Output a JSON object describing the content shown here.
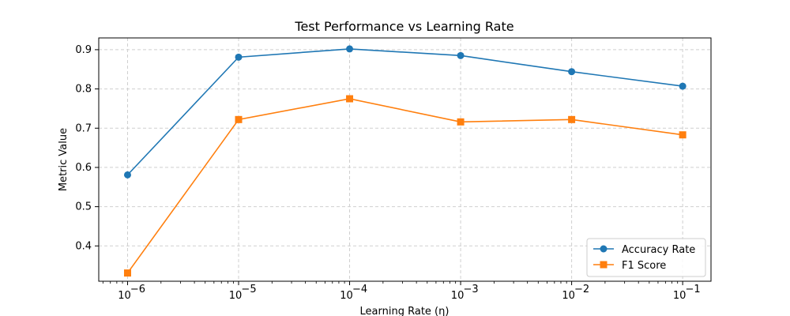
{
  "chart_data": {
    "type": "line",
    "title": "Test Performance vs Learning Rate",
    "xlabel": "Learning Rate (η)",
    "ylabel": "Metric Value",
    "x_scale": "log",
    "x": [
      1e-06,
      1e-05,
      0.0001,
      0.001,
      0.01,
      0.1
    ],
    "x_tick_labels": [
      "10",
      "10",
      "10",
      "10",
      "10",
      "10"
    ],
    "x_tick_exponents": [
      "−6",
      "−5",
      "−4",
      "−3",
      "−2",
      "−1"
    ],
    "y_ticks": [
      0.4,
      0.5,
      0.6,
      0.7,
      0.8,
      0.9
    ],
    "y_tick_labels": [
      "0.4",
      "0.5",
      "0.6",
      "0.7",
      "0.8",
      "0.9"
    ],
    "ylim": [
      0.31,
      0.93
    ],
    "xlim": [
      5.5e-07,
      0.18
    ],
    "grid": true,
    "legend_position": "bottom-right",
    "series": [
      {
        "name": "Accuracy Rate",
        "color": "#1f77b4",
        "marker": "circle",
        "values": [
          0.581,
          0.881,
          0.902,
          0.885,
          0.844,
          0.807
        ]
      },
      {
        "name": "F1 Score",
        "color": "#ff7f0e",
        "marker": "square",
        "values": [
          0.331,
          0.722,
          0.775,
          0.716,
          0.722,
          0.683
        ]
      }
    ]
  }
}
